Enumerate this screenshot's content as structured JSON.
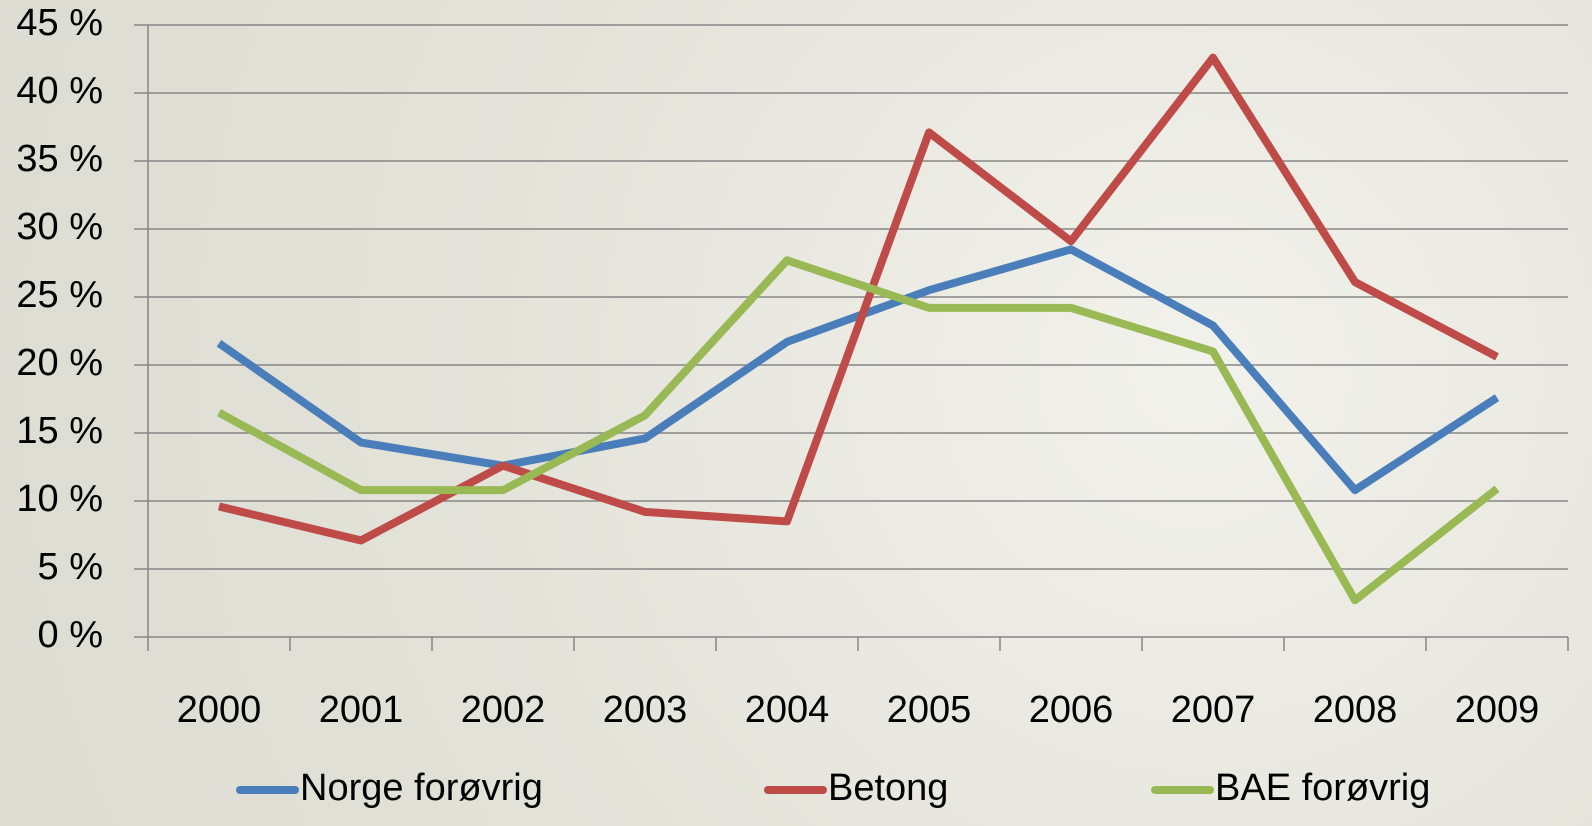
{
  "chart_data": {
    "type": "line",
    "categories": [
      "2000",
      "2001",
      "2002",
      "2003",
      "2004",
      "2005",
      "2006",
      "2007",
      "2008",
      "2009"
    ],
    "series": [
      {
        "name": "Norge forøvrig",
        "color": "#4a7ebb",
        "values": [
          21.6,
          14.3,
          12.6,
          14.6,
          21.7,
          25.5,
          28.5,
          22.9,
          10.8,
          17.6
        ]
      },
      {
        "name": "Betong",
        "color": "#be4b48",
        "values": [
          9.6,
          7.1,
          12.6,
          9.2,
          8.5,
          37.1,
          29.1,
          42.6,
          26.1,
          20.6
        ]
      },
      {
        "name": "BAE forøvrig",
        "color": "#98b954",
        "values": [
          16.5,
          10.8,
          10.8,
          16.3,
          27.7,
          24.2,
          24.2,
          21.0,
          2.7,
          10.9
        ]
      }
    ],
    "ylim": [
      0,
      45
    ],
    "yticks": [
      {
        "value": 0,
        "label": "0 %"
      },
      {
        "value": 5,
        "label": "5 %"
      },
      {
        "value": 10,
        "label": "10 %"
      },
      {
        "value": 15,
        "label": "15 %"
      },
      {
        "value": 20,
        "label": "20 %"
      },
      {
        "value": 25,
        "label": "25 %"
      },
      {
        "value": 30,
        "label": "30 %"
      },
      {
        "value": 35,
        "label": "35 %"
      },
      {
        "value": 40,
        "label": "40 %"
      },
      {
        "value": 45,
        "label": "45 %"
      }
    ],
    "grid": true,
    "legend": "bottom"
  }
}
